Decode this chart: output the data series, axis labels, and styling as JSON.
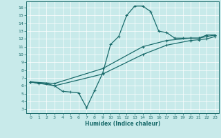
{
  "title": "",
  "xlabel": "Humidex (Indice chaleur)",
  "bg_color": "#c8eaea",
  "line_color": "#1a6b6b",
  "xlim": [
    -0.5,
    23.5
  ],
  "ylim": [
    2.5,
    16.8
  ],
  "xticks": [
    0,
    1,
    2,
    3,
    4,
    5,
    6,
    7,
    8,
    9,
    10,
    11,
    12,
    13,
    14,
    15,
    16,
    17,
    18,
    19,
    20,
    21,
    22,
    23
  ],
  "yticks": [
    3,
    4,
    5,
    6,
    7,
    8,
    9,
    10,
    11,
    12,
    13,
    14,
    15,
    16
  ],
  "curve1_x": [
    0,
    1,
    2,
    3,
    4,
    5,
    6,
    7,
    8,
    9,
    10,
    11,
    12,
    13,
    14,
    15,
    16,
    17,
    18,
    19,
    20,
    21,
    22,
    23
  ],
  "curve1_y": [
    6.5,
    6.3,
    6.3,
    6.0,
    5.3,
    5.2,
    5.1,
    3.2,
    5.4,
    7.6,
    11.3,
    12.3,
    15.0,
    16.2,
    16.2,
    15.5,
    13.0,
    12.8,
    12.1,
    12.1,
    12.1,
    12.1,
    12.5,
    12.5
  ],
  "curve2_x": [
    0,
    3,
    9,
    14,
    17,
    20,
    21,
    22,
    23
  ],
  "curve2_y": [
    6.5,
    6.3,
    8.2,
    11.0,
    11.8,
    12.1,
    12.1,
    12.3,
    12.5
  ],
  "curve3_x": [
    0,
    3,
    9,
    14,
    17,
    20,
    21,
    22,
    23
  ],
  "curve3_y": [
    6.5,
    6.0,
    7.5,
    10.0,
    11.2,
    11.8,
    11.9,
    12.0,
    12.3
  ]
}
